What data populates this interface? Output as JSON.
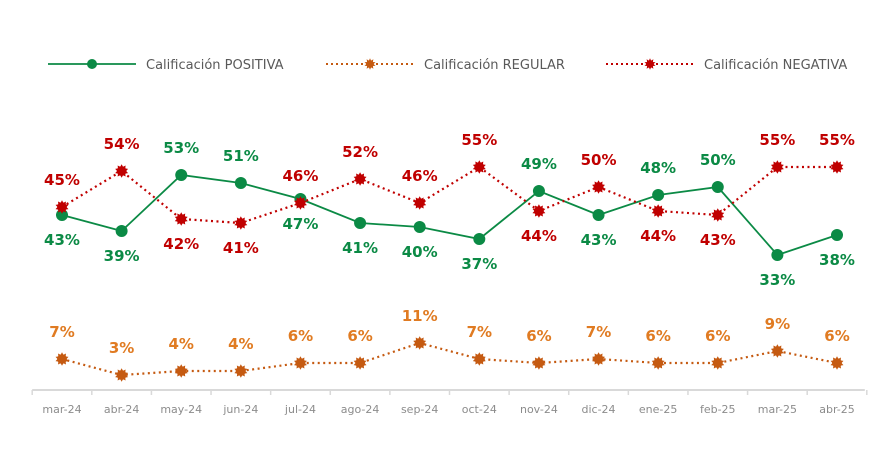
{
  "chart_data": {
    "type": "line",
    "title": "",
    "xlabel": "",
    "ylabel": "",
    "ylim": [
      0,
      60
    ],
    "grid": false,
    "legend_position": "top",
    "categories": [
      "mar-24",
      "abr-24",
      "may-24",
      "jun-24",
      "jul-24",
      "ago-24",
      "sep-24",
      "oct-24",
      "nov-24",
      "dic-24",
      "ene-25",
      "feb-25",
      "mar-25",
      "abr-25"
    ],
    "series": [
      {
        "name": "Calificación POSITIVA",
        "color": "#0b8a45",
        "line_style": "solid",
        "marker": "circle",
        "label_suffix": "%",
        "values": [
          43,
          39,
          53,
          51,
          47,
          41,
          40,
          37,
          49,
          43,
          48,
          50,
          33,
          38
        ],
        "label_positions": [
          "below",
          "below",
          "above",
          "above",
          "below",
          "below",
          "below",
          "below",
          "above",
          "below",
          "above",
          "above",
          "below",
          "below"
        ]
      },
      {
        "name": "Calificación REGULAR",
        "color": "#c55a11",
        "label_color": "#e07b22",
        "line_style": "dotted",
        "marker": "star",
        "label_suffix": "%",
        "values": [
          7,
          3,
          4,
          4,
          6,
          6,
          11,
          7,
          6,
          7,
          6,
          6,
          9,
          6
        ],
        "label_positions": [
          "above",
          "above",
          "above",
          "above",
          "above",
          "above",
          "above",
          "above",
          "above",
          "above",
          "above",
          "above",
          "above",
          "above"
        ]
      },
      {
        "name": "Calificación NEGATIVA",
        "color": "#c00000",
        "line_style": "dotted",
        "marker": "star",
        "label_suffix": "%",
        "values": [
          45,
          54,
          42,
          41,
          46,
          52,
          46,
          55,
          44,
          50,
          44,
          43,
          55,
          55
        ],
        "label_positions": [
          "above",
          "above",
          "below",
          "below",
          "above",
          "above",
          "above",
          "above",
          "below",
          "above",
          "below",
          "below",
          "above",
          "above"
        ]
      }
    ]
  }
}
